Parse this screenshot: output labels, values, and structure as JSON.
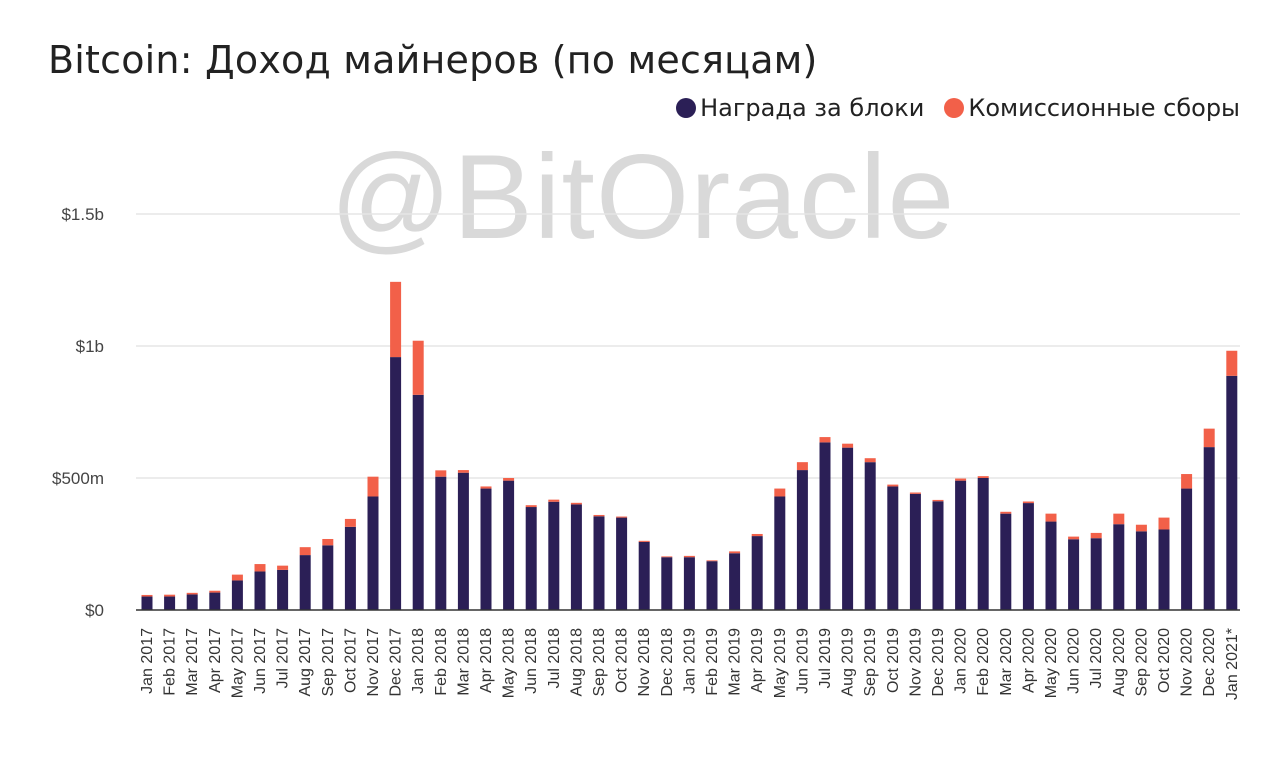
{
  "chart_data": {
    "type": "bar",
    "stacked": true,
    "title": "Bitcoin: Доход майнеров (по месяцам)",
    "watermark": "@BitOracle",
    "legend_position": "top-right",
    "grid": true,
    "unit": "USD",
    "ylim": [
      0,
      1500000000
    ],
    "y_ticks": [
      {
        "value": 0,
        "label": "$0"
      },
      {
        "value": 500000000,
        "label": "$500m"
      },
      {
        "value": 1000000000,
        "label": "$1b"
      },
      {
        "value": 1500000000,
        "label": "$1.5b"
      }
    ],
    "categories": [
      "Jan 2017",
      "Feb 2017",
      "Mar 2017",
      "Apr 2017",
      "May 2017",
      "Jun 2017",
      "Jul 2017",
      "Aug 2017",
      "Sep 2017",
      "Oct 2017",
      "Nov 2017",
      "Dec 2017",
      "Jan 2018",
      "Feb 2018",
      "Mar 2018",
      "Apr 2018",
      "May 2018",
      "Jun 2018",
      "Jul 2018",
      "Aug 2018",
      "Sep 2018",
      "Oct 2018",
      "Nov 2018",
      "Dec 2018",
      "Jan 2019",
      "Feb 2019",
      "Mar 2019",
      "Apr 2019",
      "May 2019",
      "Jun 2019",
      "Jul 2019",
      "Aug 2019",
      "Sep 2019",
      "Oct 2019",
      "Nov 2019",
      "Dec 2019",
      "Jan 2020",
      "Feb 2020",
      "Mar 2020",
      "Apr 2020",
      "May 2020",
      "Jun 2020",
      "Jul 2020",
      "Aug 2020",
      "Sep 2020",
      "Oct 2020",
      "Nov 2020",
      "Dec 2020",
      "Jan 2021*"
    ],
    "series": [
      {
        "name": "Награда за блоки",
        "color": "#2b1f56",
        "values": [
          51000000,
          51000000,
          59000000,
          66000000,
          112000000,
          146000000,
          152000000,
          208000000,
          245000000,
          315000000,
          430000000,
          958000000,
          815000000,
          505000000,
          520000000,
          460000000,
          490000000,
          390000000,
          410000000,
          400000000,
          355000000,
          350000000,
          258000000,
          200000000,
          200000000,
          185000000,
          215000000,
          280000000,
          430000000,
          530000000,
          635000000,
          615000000,
          560000000,
          468000000,
          440000000,
          412000000,
          490000000,
          500000000,
          365000000,
          405000000,
          335000000,
          268000000,
          272000000,
          325000000,
          298000000,
          305000000,
          460000000,
          617000000,
          887000000
        ]
      },
      {
        "name": "Комиссионные сборы",
        "color": "#f26049",
        "values": [
          6000000,
          7000000,
          6000000,
          7000000,
          22000000,
          28000000,
          16000000,
          30000000,
          24000000,
          30000000,
          75000000,
          285000000,
          205000000,
          24000000,
          10000000,
          8000000,
          10000000,
          7000000,
          8000000,
          6000000,
          5000000,
          4000000,
          4000000,
          3000000,
          5000000,
          3000000,
          7000000,
          8000000,
          30000000,
          30000000,
          20000000,
          15000000,
          15000000,
          7000000,
          5000000,
          5000000,
          8000000,
          7000000,
          7000000,
          6000000,
          30000000,
          10000000,
          20000000,
          40000000,
          25000000,
          45000000,
          55000000,
          70000000,
          95000000
        ]
      }
    ]
  }
}
